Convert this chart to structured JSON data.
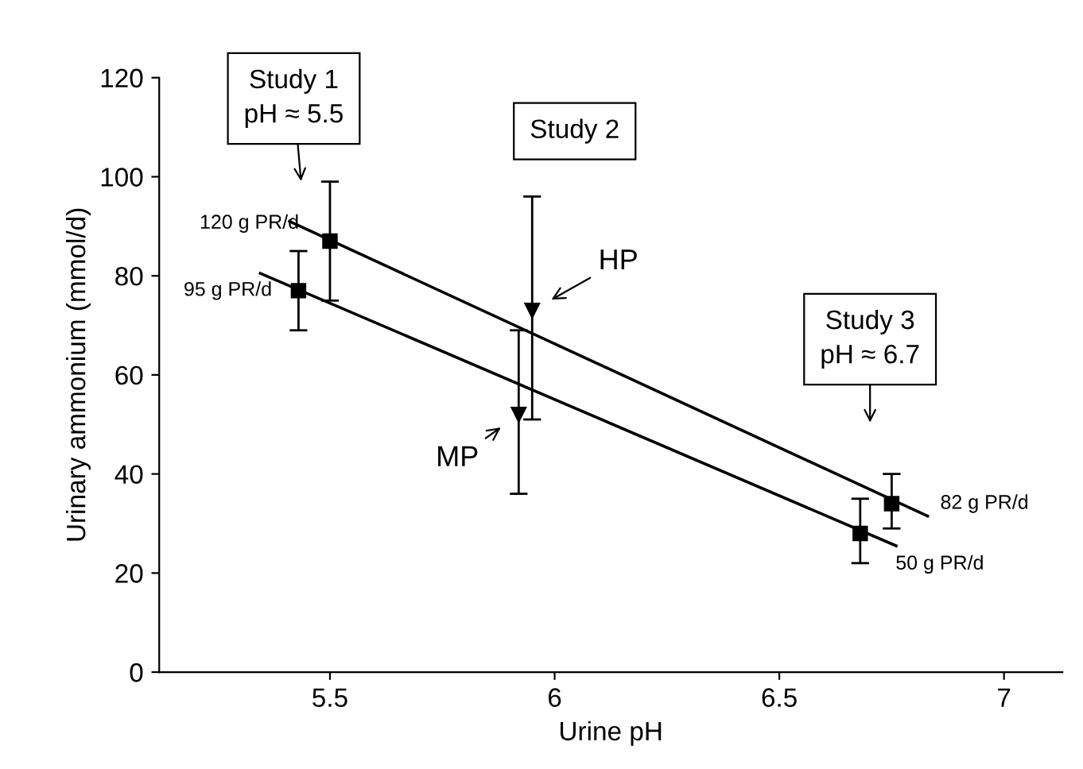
{
  "chart_data": {
    "type": "scatter",
    "xlabel": "Urine pH",
    "ylabel": "Urinary ammonium (mmol/d)",
    "xlim": [
      5.12,
      7.13
    ],
    "ylim": [
      0,
      120
    ],
    "xticks": [
      5.5,
      6,
      6.5,
      7
    ],
    "yticks": [
      0,
      20,
      40,
      60,
      80,
      100,
      120
    ],
    "grid": false,
    "series": [
      {
        "name": "95 g PR/d",
        "color": "#000000",
        "marker": "square",
        "x": [
          5.43
        ],
        "values": [
          77
        ],
        "errors": [
          [
            69,
            85
          ]
        ]
      },
      {
        "name": "120 g PR/d",
        "color": "#000000",
        "marker": "square",
        "x": [
          5.5
        ],
        "values": [
          87
        ],
        "errors": [
          [
            75,
            99
          ]
        ]
      },
      {
        "name": "MP",
        "color": "#000000",
        "marker": "triangle",
        "x": [
          5.92
        ],
        "values": [
          52
        ],
        "errors": [
          [
            36,
            69
          ]
        ]
      },
      {
        "name": "HP",
        "color": "#000000",
        "marker": "triangle",
        "x": [
          5.95
        ],
        "values": [
          73
        ],
        "errors": [
          [
            51,
            96
          ]
        ]
      },
      {
        "name": "50 g PR/d",
        "color": "#000000",
        "marker": "square",
        "x": [
          6.68
        ],
        "values": [
          28
        ],
        "errors": [
          [
            22,
            35
          ]
        ]
      },
      {
        "name": "82 g PR/d",
        "color": "#000000",
        "marker": "square",
        "x": [
          6.75
        ],
        "values": [
          34
        ],
        "errors": [
          [
            29,
            40
          ]
        ]
      },
      {
        "type": "line",
        "color": "#000000",
        "x": [
          5.41,
          6.83
        ],
        "values": [
          91,
          31.5
        ]
      },
      {
        "type": "line",
        "color": "#000000",
        "x": [
          5.345,
          6.76
        ],
        "values": [
          80.5,
          25.5
        ]
      }
    ],
    "annotations": [
      "Study 1\npH ≈ 5.5",
      "Study 2",
      "Study 3\npH ≈ 6.7"
    ]
  }
}
